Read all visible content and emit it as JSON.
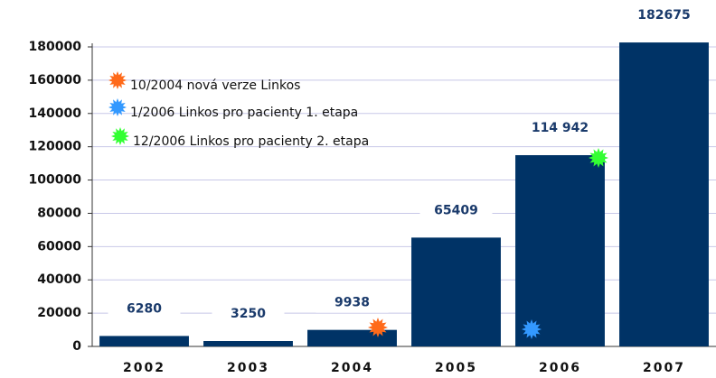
{
  "chart_data": {
    "type": "bar",
    "categories": [
      "2002",
      "2003",
      "2004",
      "2005",
      "2006",
      "2007"
    ],
    "values": [
      6280,
      3250,
      9938,
      65409,
      114942,
      182675
    ],
    "value_labels": [
      "6280",
      "3250",
      "9938",
      "65409",
      "114 942",
      "182675"
    ],
    "color": "#003366",
    "ylim": [
      0,
      180000
    ],
    "yticks": [
      0,
      20000,
      40000,
      60000,
      80000,
      100000,
      120000,
      140000,
      160000,
      180000
    ],
    "grid": true,
    "annotations": [
      {
        "text": "10/2004 nová verze Linkos",
        "color": "#ff6a1a"
      },
      {
        "text": "1/2006 Linkos pro pacienty 1. etapa",
        "color": "#3399ff"
      },
      {
        "text": "12/2006 Linkos pro pacienty 2. etapa",
        "color": "#33ff33"
      }
    ]
  }
}
